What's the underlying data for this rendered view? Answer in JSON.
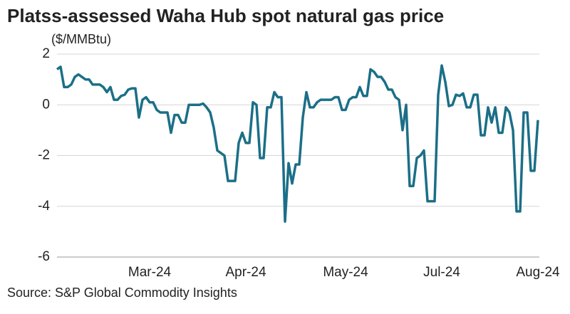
{
  "chart_data": {
    "type": "line",
    "title": "Platss-assessed Waha Hub spot natural gas price",
    "y_label": "($/MMBtu)",
    "source": "Source: S&P Global Commodity Insights",
    "color": "#1b6f87",
    "grid": true,
    "ylim": [
      -6,
      2
    ],
    "yticks": [
      2,
      0,
      -2,
      -4,
      -6
    ],
    "categories": [
      null,
      null,
      null,
      null,
      null,
      null,
      null,
      null,
      null,
      null,
      null,
      null,
      null,
      null,
      null,
      null,
      null,
      null,
      null,
      null,
      null,
      null,
      null,
      null,
      null,
      null,
      "Mar-24",
      null,
      null,
      null,
      null,
      null,
      null,
      null,
      null,
      null,
      null,
      null,
      null,
      null,
      null,
      null,
      null,
      null,
      null,
      null,
      null,
      null,
      null,
      null,
      null,
      null,
      null,
      "Apr-24",
      null,
      null,
      null,
      null,
      null,
      null,
      null,
      null,
      null,
      null,
      null,
      null,
      null,
      null,
      null,
      null,
      null,
      null,
      null,
      null,
      null,
      null,
      null,
      null,
      null,
      null,
      null,
      "May-24",
      null,
      null,
      null,
      null,
      null,
      null,
      null,
      null,
      null,
      null,
      null,
      null,
      null,
      null,
      null,
      null,
      null,
      null,
      null,
      null,
      null,
      null,
      null,
      null,
      null,
      null,
      "Jul-24",
      null,
      null,
      null,
      null,
      null,
      null,
      null,
      null,
      null,
      null,
      null,
      null,
      null,
      null,
      null,
      null,
      null,
      null,
      null,
      null,
      null,
      null,
      null,
      null,
      null,
      null,
      "Aug-24"
    ],
    "values": [
      1.4,
      1.5,
      0.7,
      0.7,
      0.8,
      1.1,
      1.2,
      1.1,
      1.0,
      1.0,
      0.8,
      0.8,
      0.8,
      0.7,
      0.5,
      0.7,
      0.2,
      0.2,
      0.35,
      0.4,
      0.6,
      0.65,
      0.65,
      -0.5,
      0.2,
      0.3,
      0.1,
      0.1,
      -0.2,
      -0.3,
      -0.3,
      -0.3,
      -1.1,
      -0.4,
      -0.4,
      -0.7,
      -0.7,
      0,
      0,
      0,
      0,
      0.05,
      -0.1,
      -0.3,
      -0.9,
      -1.8,
      -1.9,
      -2.0,
      -3.0,
      -3.0,
      -3.0,
      -1.5,
      -1.1,
      -1.5,
      -1.5,
      0.1,
      0,
      -2.1,
      -2.1,
      -0.1,
      -0.1,
      0.5,
      0.3,
      0.3,
      -4.6,
      -2.3,
      -3.1,
      -2.35,
      -2.35,
      -0.5,
      0.5,
      -0.1,
      -0.1,
      0.1,
      0.2,
      0.2,
      0.2,
      0.2,
      0.3,
      0.3,
      -0.2,
      -0.2,
      0.2,
      0.3,
      0.3,
      0.7,
      0.35,
      0.35,
      1.4,
      1.3,
      1.1,
      1.1,
      0.9,
      0.6,
      0.6,
      0.3,
      0.2,
      -1.0,
      0,
      -3.2,
      -3.2,
      -2.1,
      -2.0,
      -1.8,
      -3.8,
      -3.8,
      -3.8,
      0.4,
      1.55,
      0.9,
      -0.05,
      0,
      0.4,
      0.35,
      0.45,
      -0.1,
      -0.1,
      0.4,
      0.4,
      -1.2,
      -1.2,
      -0.1,
      -0.7,
      -0.1,
      -1.1,
      -1.1,
      -0.1,
      -0.3,
      -1.0,
      -4.2,
      -4.2,
      -0.3,
      -0.3,
      -2.6,
      -2.6,
      -0.6
    ]
  }
}
